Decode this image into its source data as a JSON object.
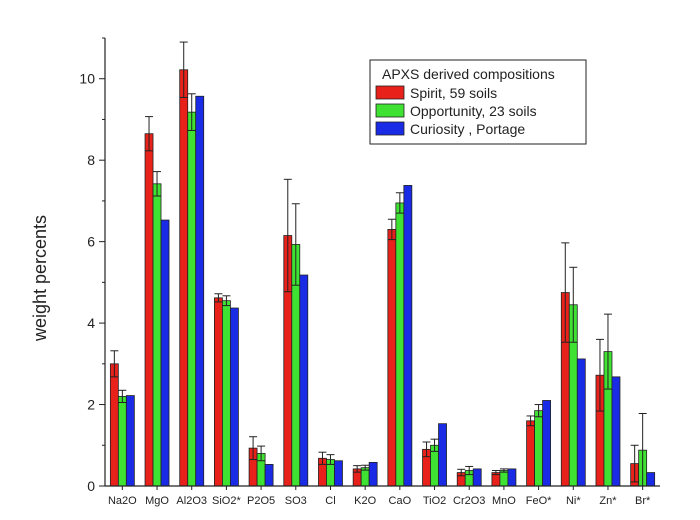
{
  "chart_data": {
    "type": "bar",
    "ylabel": "weight percents",
    "xlabel": "",
    "ylim": [
      0,
      11
    ],
    "yticks": [
      0,
      2,
      4,
      6,
      8,
      10
    ],
    "legend_title": "APXS derived compositions",
    "legend_placement": "top-right",
    "grid": false,
    "categories": [
      "Na2O",
      "MgO",
      "Al2O3",
      "SiO2*",
      "P2O5",
      "SO3",
      "Cl",
      "K2O",
      "CaO",
      "TiO2",
      "Cr2O3",
      "MnO",
      "FeO*",
      "Ni*",
      "Zn*",
      "Br*"
    ],
    "series": [
      {
        "name": "Spirit, 59 soils",
        "color": "#e8211a",
        "values": [
          3.0,
          8.65,
          10.22,
          4.62,
          0.93,
          6.15,
          0.68,
          0.42,
          6.3,
          0.9,
          0.33,
          0.33,
          1.6,
          4.75,
          2.72,
          0.55
        ],
        "errors": [
          0.32,
          0.42,
          0.68,
          0.1,
          0.28,
          1.38,
          0.15,
          0.08,
          0.25,
          0.18,
          0.08,
          0.05,
          0.12,
          1.22,
          0.88,
          0.45
        ]
      },
      {
        "name": "Opportunity, 23 soils",
        "color": "#3fe133",
        "values": [
          2.2,
          7.42,
          9.18,
          4.55,
          0.8,
          5.93,
          0.65,
          0.45,
          6.95,
          1.0,
          0.38,
          0.38,
          1.85,
          4.45,
          3.3,
          0.88
        ],
        "errors": [
          0.15,
          0.3,
          0.45,
          0.12,
          0.18,
          1.0,
          0.12,
          0.06,
          0.25,
          0.15,
          0.1,
          0.04,
          0.15,
          0.92,
          0.92,
          0.9
        ]
      },
      {
        "name": "Curiosity , Portage",
        "color": "#1a2be5",
        "values": [
          2.22,
          6.53,
          9.57,
          4.37,
          0.53,
          5.18,
          0.62,
          0.58,
          7.38,
          1.53,
          0.42,
          0.42,
          2.1,
          3.12,
          2.68,
          0.33
        ],
        "errors": null
      }
    ]
  }
}
